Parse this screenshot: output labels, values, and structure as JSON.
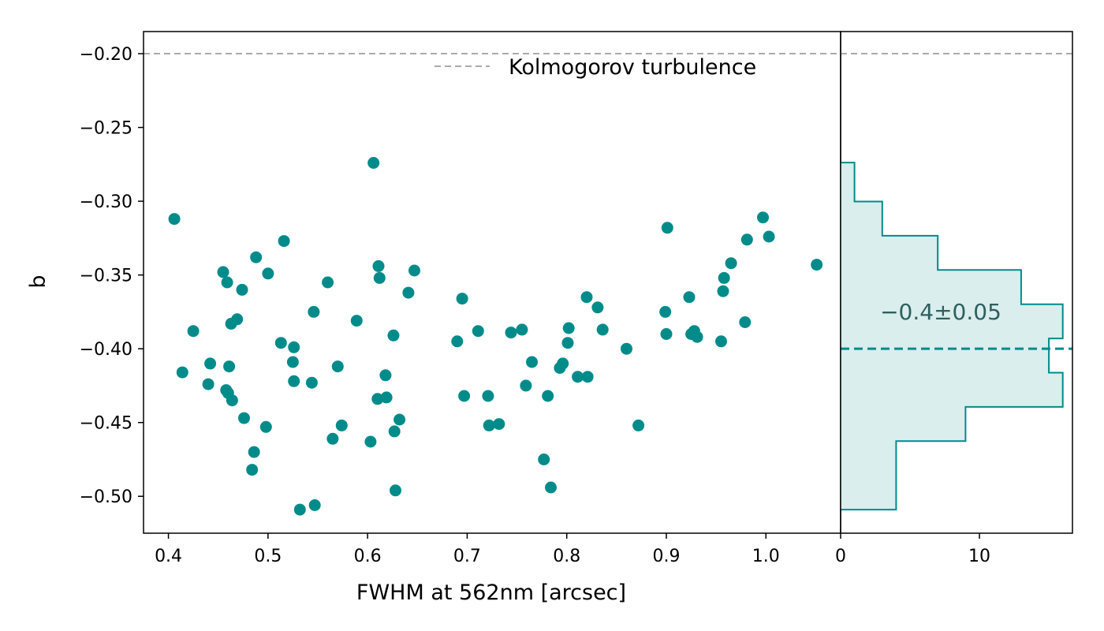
{
  "chart_data": [
    {
      "type": "scatter",
      "xlabel": "FWHM at 562nm [arcsec]",
      "ylabel": "b",
      "xlim": [
        0.375,
        1.075
      ],
      "ylim": [
        -0.525,
        -0.185
      ],
      "xticks": [
        0.4,
        0.5,
        0.6,
        0.7,
        0.8,
        0.9,
        1.0
      ],
      "xtick_labels": [
        "0.4",
        "0.5",
        "0.6",
        "0.7",
        "0.8",
        "0.9",
        "1.0"
      ],
      "yticks": [
        -0.2,
        -0.25,
        -0.3,
        -0.35,
        -0.4,
        -0.45,
        -0.5
      ],
      "ytick_labels": [
        "−0.20",
        "−0.25",
        "−0.30",
        "−0.35",
        "−0.40",
        "−0.45",
        "−0.50"
      ],
      "grid": false,
      "marker_color": "#008b8b",
      "reference_line": {
        "y": -0.2,
        "label": "Kolmogorov turbulence",
        "color": "#aaaaaa",
        "style": "dashed"
      },
      "legend": {
        "entries": [
          "Kolmogorov turbulence"
        ],
        "placement": "top-right"
      },
      "points": [
        [
          0.406,
          -0.312
        ],
        [
          0.414,
          -0.416
        ],
        [
          0.425,
          -0.388
        ],
        [
          0.44,
          -0.424
        ],
        [
          0.442,
          -0.41
        ],
        [
          0.455,
          -0.348
        ],
        [
          0.458,
          -0.428
        ],
        [
          0.459,
          -0.355
        ],
        [
          0.46,
          -0.43
        ],
        [
          0.461,
          -0.412
        ],
        [
          0.463,
          -0.383
        ],
        [
          0.464,
          -0.435
        ],
        [
          0.469,
          -0.38
        ],
        [
          0.474,
          -0.36
        ],
        [
          0.476,
          -0.447
        ],
        [
          0.484,
          -0.482
        ],
        [
          0.486,
          -0.47
        ],
        [
          0.488,
          -0.338
        ],
        [
          0.498,
          -0.453
        ],
        [
          0.5,
          -0.349
        ],
        [
          0.513,
          -0.396
        ],
        [
          0.516,
          -0.327
        ],
        [
          0.525,
          -0.409
        ],
        [
          0.526,
          -0.399
        ],
        [
          0.526,
          -0.422
        ],
        [
          0.532,
          -0.509
        ],
        [
          0.544,
          -0.423
        ],
        [
          0.546,
          -0.375
        ],
        [
          0.547,
          -0.506
        ],
        [
          0.56,
          -0.355
        ],
        [
          0.565,
          -0.461
        ],
        [
          0.57,
          -0.412
        ],
        [
          0.574,
          -0.452
        ],
        [
          0.589,
          -0.381
        ],
        [
          0.603,
          -0.463
        ],
        [
          0.606,
          -0.274
        ],
        [
          0.61,
          -0.434
        ],
        [
          0.611,
          -0.344
        ],
        [
          0.612,
          -0.352
        ],
        [
          0.618,
          -0.418
        ],
        [
          0.619,
          -0.433
        ],
        [
          0.626,
          -0.391
        ],
        [
          0.627,
          -0.456
        ],
        [
          0.628,
          -0.496
        ],
        [
          0.632,
          -0.448
        ],
        [
          0.641,
          -0.362
        ],
        [
          0.647,
          -0.347
        ],
        [
          0.69,
          -0.395
        ],
        [
          0.695,
          -0.366
        ],
        [
          0.697,
          -0.432
        ],
        [
          0.711,
          -0.388
        ],
        [
          0.721,
          -0.432
        ],
        [
          0.722,
          -0.452
        ],
        [
          0.732,
          -0.451
        ],
        [
          0.744,
          -0.389
        ],
        [
          0.755,
          -0.387
        ],
        [
          0.759,
          -0.425
        ],
        [
          0.765,
          -0.409
        ],
        [
          0.777,
          -0.475
        ],
        [
          0.781,
          -0.432
        ],
        [
          0.784,
          -0.494
        ],
        [
          0.793,
          -0.413
        ],
        [
          0.796,
          -0.41
        ],
        [
          0.801,
          -0.396
        ],
        [
          0.802,
          -0.386
        ],
        [
          0.811,
          -0.419
        ],
        [
          0.82,
          -0.365
        ],
        [
          0.821,
          -0.419
        ],
        [
          0.831,
          -0.372
        ],
        [
          0.836,
          -0.387
        ],
        [
          0.86,
          -0.4
        ],
        [
          0.872,
          -0.452
        ],
        [
          0.899,
          -0.375
        ],
        [
          0.9,
          -0.39
        ],
        [
          0.901,
          -0.318
        ],
        [
          0.923,
          -0.365
        ],
        [
          0.925,
          -0.39
        ],
        [
          0.928,
          -0.388
        ],
        [
          0.931,
          -0.392
        ],
        [
          0.955,
          -0.395
        ],
        [
          0.957,
          -0.361
        ],
        [
          0.958,
          -0.352
        ],
        [
          0.965,
          -0.342
        ],
        [
          0.979,
          -0.382
        ],
        [
          0.981,
          -0.326
        ],
        [
          0.997,
          -0.311
        ],
        [
          1.003,
          -0.324
        ],
        [
          1.051,
          -0.343
        ]
      ]
    },
    {
      "type": "histogram",
      "orientation": "horizontal",
      "xlim": [
        0,
        16.7
      ],
      "ylim": [
        -0.525,
        -0.185
      ],
      "xticks": [
        0,
        10
      ],
      "xtick_labels": [
        "0",
        "10"
      ],
      "color": "#008b8b",
      "fill_color": "#d9eeed",
      "bins": [
        {
          "y0": -0.509,
          "y1": -0.4858,
          "count": 4
        },
        {
          "y0": -0.4858,
          "y1": -0.4626,
          "count": 4
        },
        {
          "y0": -0.4626,
          "y1": -0.4394,
          "count": 9
        },
        {
          "y0": -0.4394,
          "y1": -0.4162,
          "count": 16
        },
        {
          "y0": -0.4162,
          "y1": -0.393,
          "count": 15
        },
        {
          "y0": -0.393,
          "y1": -0.3698,
          "count": 16
        },
        {
          "y0": -0.3698,
          "y1": -0.3466,
          "count": 13
        },
        {
          "y0": -0.3466,
          "y1": -0.3234,
          "count": 7
        },
        {
          "y0": -0.3234,
          "y1": -0.3002,
          "count": 3
        },
        {
          "y0": -0.3002,
          "y1": -0.277,
          "count": 1
        },
        {
          "y0": -0.277,
          "y1": -0.2738,
          "count": 1
        }
      ],
      "mean_line": {
        "y": -0.4,
        "color": "#008b8b",
        "style": "dashed"
      },
      "annotation": {
        "text": "−0.4±0.05",
        "color": "#2f5f5f"
      }
    }
  ]
}
